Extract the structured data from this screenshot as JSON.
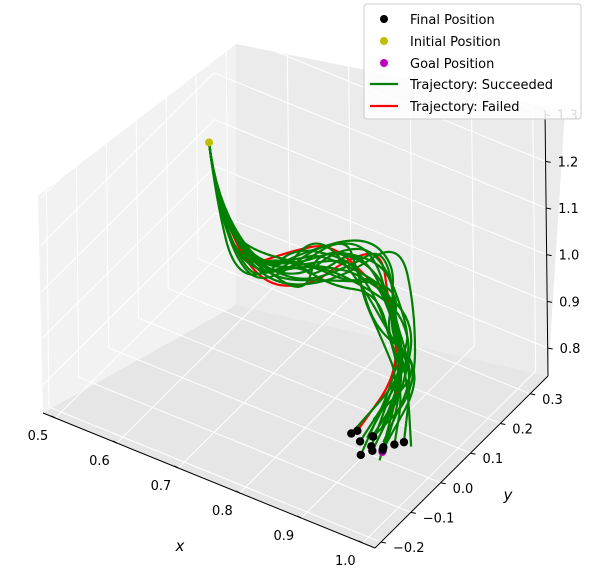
{
  "chart_data": {
    "type": "line",
    "projection": "3d",
    "title": "",
    "xlabel": "x",
    "ylabel": "y",
    "zlabel": "",
    "xlim": [
      0.48,
      1.02
    ],
    "ylim": [
      -0.22,
      0.36
    ],
    "zlim": [
      0.74,
      1.31
    ],
    "x_ticks": [
      "0.5",
      "0.6",
      "0.7",
      "0.8",
      "0.9",
      "1.0"
    ],
    "y_ticks": [
      "−0.2",
      "−0.1",
      "0.0",
      "0.1",
      "0.2",
      "0.3"
    ],
    "z_ticks": [
      "0.8",
      "0.9",
      "1.0",
      "1.1",
      "1.2",
      "1.3"
    ],
    "grid": true,
    "legend_position": "top-right",
    "legend": [
      {
        "label": "Final Position",
        "kind": "marker",
        "color": "#000000"
      },
      {
        "label": "Initial Position",
        "kind": "marker",
        "color": "#bfbf00"
      },
      {
        "label": "Goal Position",
        "kind": "marker",
        "color": "#bf00bf"
      },
      {
        "label": "Trajectory: Succeeded",
        "kind": "line",
        "color": "#008000"
      },
      {
        "label": "Trajectory: Failed",
        "kind": "line",
        "color": "#ff0000"
      }
    ],
    "initial_position": {
      "x": 0.5,
      "y": 0.3,
      "z": 1.0
    },
    "goal_position": {
      "x": 0.95,
      "y": -0.05,
      "z": 0.8
    },
    "final_positions_count": 12,
    "succeeded_trajectories_count": 18,
    "failed_trajectories_count": 2
  }
}
